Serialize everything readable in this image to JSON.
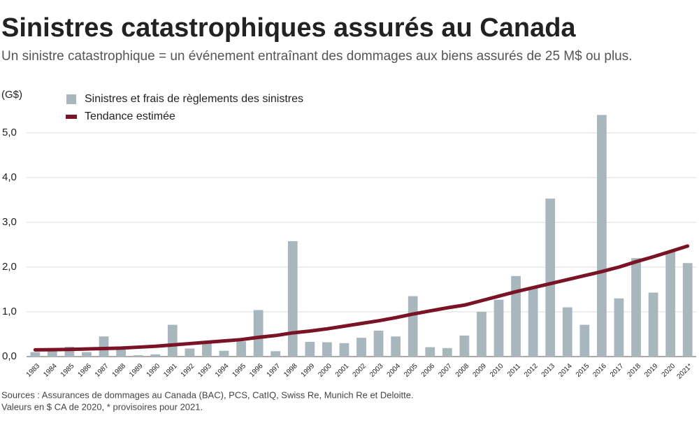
{
  "chart_data": {
    "type": "bar",
    "title": "Sinistres catastrophiques assurés au Canada",
    "subtitle": "Un sinistre catastrophique = un événement entraînant des dommages aux biens assurés de 25 M$ ou plus.",
    "y_label": "(G$)",
    "categories": [
      "1983",
      "1984",
      "1985",
      "1986",
      "1987",
      "1988",
      "1989",
      "1990",
      "1991",
      "1992",
      "1993",
      "1994",
      "1995",
      "1996",
      "1997",
      "1998",
      "1999",
      "2000",
      "2001",
      "2002",
      "2003",
      "2004",
      "2005",
      "2006",
      "2007",
      "2008",
      "2009",
      "2010",
      "2011",
      "2012",
      "2013",
      "2014",
      "2015",
      "2016",
      "2017",
      "2018",
      "2019",
      "2020",
      "2021*"
    ],
    "series": [
      {
        "name": "Sinistres et frais de règlements des sinistres",
        "type": "bar",
        "color": "#a8b6bd",
        "values": [
          0.1,
          0.13,
          0.22,
          0.1,
          0.45,
          0.17,
          0.03,
          0.05,
          0.71,
          0.18,
          0.33,
          0.13,
          0.34,
          1.04,
          0.12,
          2.58,
          0.33,
          0.32,
          0.3,
          0.42,
          0.58,
          0.45,
          1.35,
          0.21,
          0.19,
          0.47,
          1.0,
          1.27,
          1.8,
          1.55,
          3.53,
          1.1,
          0.71,
          5.4,
          1.3,
          2.2,
          1.43,
          2.35,
          2.09
        ]
      },
      {
        "name": "Tendance estimée",
        "type": "line",
        "color": "#7a1325",
        "values": [
          0.15,
          0.155,
          0.16,
          0.17,
          0.18,
          0.19,
          0.21,
          0.23,
          0.26,
          0.29,
          0.32,
          0.35,
          0.38,
          0.43,
          0.47,
          0.53,
          0.57,
          0.62,
          0.68,
          0.74,
          0.8,
          0.87,
          0.95,
          1.02,
          1.09,
          1.15,
          1.25,
          1.35,
          1.45,
          1.54,
          1.63,
          1.72,
          1.81,
          1.9,
          2.0,
          2.12,
          2.23,
          2.35,
          2.47
        ]
      }
    ],
    "ylim": [
      0,
      5.5
    ],
    "yticks": [
      {
        "value": 0,
        "label": "0,0"
      },
      {
        "value": 1,
        "label": "1,0"
      },
      {
        "value": 2,
        "label": "2,0"
      },
      {
        "value": 3,
        "label": "3,0"
      },
      {
        "value": 4,
        "label": "4,0"
      },
      {
        "value": 5,
        "label": "5,0"
      }
    ],
    "grid": true,
    "notes": [
      "Sources : Assurances de dommages au Canada (BAC), PCS, CatIQ, Swiss Re, Munich Re et Deloitte.",
      "Valeurs en $ CA de 2020, * provisoires pour 2021."
    ]
  }
}
